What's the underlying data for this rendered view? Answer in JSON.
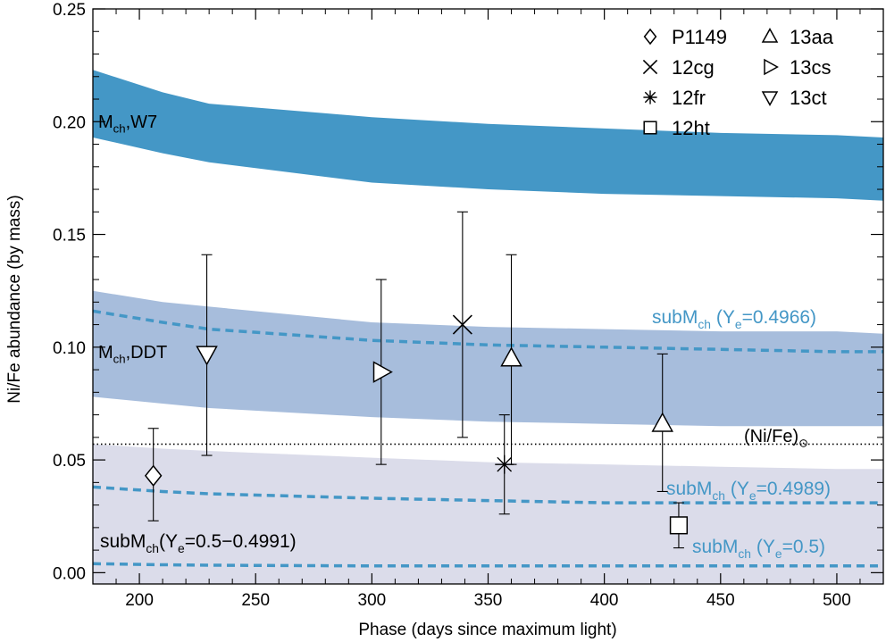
{
  "chart_data": {
    "type": "scatter",
    "xlabel": "Phase (days since maximum light)",
    "ylabel": "Ni/Fe abundance (by mass)",
    "xlim": [
      180,
      520
    ],
    "ylim": [
      -0.005,
      0.25
    ],
    "xticks": [
      "200",
      "250",
      "300",
      "350",
      "400",
      "450",
      "500"
    ],
    "yticks": [
      "0.00",
      "0.05",
      "0.10",
      "0.15",
      "0.20",
      "0.25"
    ],
    "colors": {
      "w7_band": "#4497c6",
      "ddt_band": "#a7bddc",
      "sub_band": "#dbdcea",
      "dashed": "#4497c6",
      "sub_label": "#4497c6"
    },
    "bands": [
      {
        "name": "Mch,W7",
        "color": "w7_band",
        "x": [
          180,
          210,
          230,
          300,
          350,
          400,
          450,
          500,
          520
        ],
        "upper": [
          0.223,
          0.213,
          0.208,
          0.202,
          0.199,
          0.197,
          0.195,
          0.194,
          0.193
        ],
        "lower": [
          0.193,
          0.186,
          0.182,
          0.173,
          0.17,
          0.168,
          0.167,
          0.166,
          0.165
        ]
      },
      {
        "name": "Mch,DDT",
        "color": "ddt_band",
        "x": [
          180,
          210,
          230,
          300,
          350,
          400,
          450,
          500,
          520
        ],
        "upper": [
          0.125,
          0.12,
          0.118,
          0.111,
          0.109,
          0.108,
          0.107,
          0.107,
          0.106
        ],
        "lower": [
          0.078,
          0.075,
          0.073,
          0.069,
          0.067,
          0.066,
          0.065,
          0.065,
          0.065
        ]
      },
      {
        "name": "subMch(Ye=0.5-0.4991)",
        "color": "sub_band",
        "x": [
          180,
          210,
          230,
          300,
          350,
          400,
          450,
          500,
          520
        ],
        "upper": [
          0.057,
          0.055,
          0.054,
          0.051,
          0.049,
          0.048,
          0.047,
          0.046,
          0.046
        ],
        "lower": [
          -0.005,
          -0.005,
          -0.005,
          -0.005,
          -0.005,
          -0.005,
          -0.005,
          -0.005,
          -0.005
        ]
      }
    ],
    "lines": [
      {
        "name": "subMch (Ye=0.4966)",
        "style": "dashed",
        "x": [
          180,
          210,
          230,
          300,
          350,
          400,
          450,
          500,
          520
        ],
        "y": [
          0.116,
          0.111,
          0.108,
          0.103,
          0.101,
          0.1,
          0.099,
          0.098,
          0.098
        ]
      },
      {
        "name": "subMch (Ye=0.4989)",
        "style": "dashed",
        "x": [
          180,
          210,
          230,
          300,
          350,
          400,
          450,
          500,
          520
        ],
        "y": [
          0.038,
          0.036,
          0.035,
          0.033,
          0.032,
          0.031,
          0.031,
          0.031,
          0.031
        ]
      },
      {
        "name": "subMch (Ye=0.5)",
        "style": "dashed",
        "x": [
          180,
          210,
          230,
          300,
          350,
          400,
          450,
          500,
          520
        ],
        "y": [
          0.004,
          0.0035,
          0.0033,
          0.003,
          0.003,
          0.003,
          0.003,
          0.003,
          0.003
        ]
      },
      {
        "name": "(Ni/Fe)solar",
        "style": "dotted",
        "x": [
          180,
          520
        ],
        "y": [
          0.057,
          0.057
        ]
      }
    ],
    "points": [
      {
        "name": "P1149",
        "marker": "diamond",
        "x": 206,
        "y": 0.043,
        "ylo": 0.023,
        "yhi": 0.064
      },
      {
        "name": "13ct",
        "marker": "triangle-down",
        "x": 229,
        "y": 0.097,
        "ylo": 0.052,
        "yhi": 0.141
      },
      {
        "name": "13cs",
        "marker": "triangle-right",
        "x": 304,
        "y": 0.089,
        "ylo": 0.048,
        "yhi": 0.13
      },
      {
        "name": "12cg",
        "marker": "x",
        "x": 339,
        "y": 0.11,
        "ylo": 0.06,
        "yhi": 0.16
      },
      {
        "name": "12fr",
        "marker": "asterisk",
        "x": 357,
        "y": 0.048,
        "ylo": 0.026,
        "yhi": 0.07
      },
      {
        "name": "13aa",
        "marker": "triangle-up",
        "x": 360,
        "y": 0.095,
        "ylo": 0.048,
        "yhi": 0.141
      },
      {
        "name": "13aa",
        "marker": "triangle-up",
        "x": 425,
        "y": 0.066,
        "ylo": 0.036,
        "yhi": 0.097
      },
      {
        "name": "12ht",
        "marker": "square",
        "x": 432,
        "y": 0.021,
        "ylo": 0.011,
        "yhi": 0.031
      }
    ],
    "legend": {
      "placement": "top-right",
      "items": [
        {
          "label": "P1149",
          "marker": "diamond"
        },
        {
          "label": "12cg",
          "marker": "x"
        },
        {
          "label": "12fr",
          "marker": "asterisk"
        },
        {
          "label": "12ht",
          "marker": "square"
        },
        {
          "label": "13aa",
          "marker": "triangle-up"
        },
        {
          "label": "13cs",
          "marker": "triangle-right"
        },
        {
          "label": "13ct",
          "marker": "triangle-down"
        }
      ]
    },
    "annotations": {
      "w7": {
        "main": "M",
        "sub": "ch",
        "tail": ",W7"
      },
      "ddt": {
        "main": "M",
        "sub": "ch",
        "tail": ",DDT"
      },
      "sub_band": {
        "pre": "subM",
        "sub1": "ch",
        "mid": "(Y",
        "sub2": "e",
        "post": "=0.5−0.4991)"
      },
      "ye4966": {
        "pre": "subM",
        "sub1": "ch",
        "mid": " (Y",
        "sub2": "e",
        "post": "=0.4966)"
      },
      "ye4989": {
        "pre": "subM",
        "sub1": "ch",
        "mid": " (Y",
        "sub2": "e",
        "post": "=0.4989)"
      },
      "ye5": {
        "pre": "subM",
        "sub1": "ch",
        "mid": " (Y",
        "sub2": "e",
        "post": "=0.5)"
      },
      "solar": {
        "main": "(Ni/Fe)",
        "symbol": "⊙"
      }
    }
  }
}
